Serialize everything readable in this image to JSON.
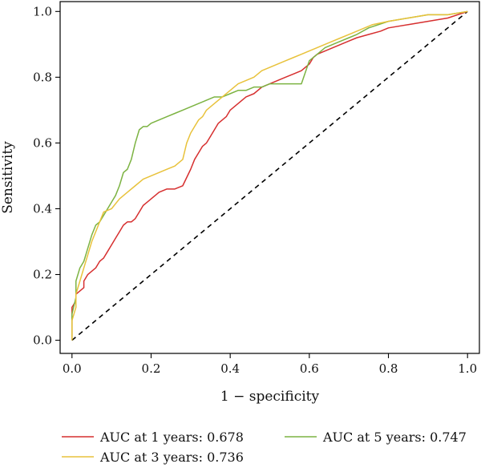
{
  "chart_data": {
    "type": "line",
    "title": "",
    "xlabel": "1 − specificity",
    "ylabel": "Sensitivity",
    "xlim": [
      -0.03,
      1.03
    ],
    "ylim": [
      -0.04,
      1.03
    ],
    "x_ticks": [
      "0.0",
      "0.2",
      "0.4",
      "0.6",
      "0.8",
      "1.0"
    ],
    "y_ticks": [
      "0.0",
      "0.2",
      "0.4",
      "0.6",
      "0.8",
      "1.0"
    ],
    "grid": false,
    "legend_position": "bottom",
    "diagonal": {
      "style": "dashed",
      "color": "#000000",
      "x": [
        0,
        1
      ],
      "y": [
        0,
        1
      ]
    },
    "series": [
      {
        "name": "AUC at 1 years: 0.678",
        "color": "#d62f2f",
        "x": [
          0.0,
          0.0,
          0.01,
          0.01,
          0.02,
          0.03,
          0.03,
          0.04,
          0.05,
          0.06,
          0.07,
          0.08,
          0.09,
          0.1,
          0.11,
          0.12,
          0.13,
          0.14,
          0.15,
          0.16,
          0.17,
          0.18,
          0.19,
          0.2,
          0.21,
          0.22,
          0.24,
          0.26,
          0.28,
          0.3,
          0.31,
          0.32,
          0.33,
          0.34,
          0.35,
          0.36,
          0.37,
          0.38,
          0.39,
          0.4,
          0.42,
          0.44,
          0.46,
          0.48,
          0.5,
          0.52,
          0.54,
          0.56,
          0.58,
          0.6,
          0.61,
          0.62,
          0.64,
          0.66,
          0.68,
          0.7,
          0.72,
          0.75,
          0.78,
          0.8,
          0.85,
          0.9,
          0.95,
          1.0
        ],
        "y": [
          0.0,
          0.1,
          0.12,
          0.14,
          0.15,
          0.16,
          0.18,
          0.2,
          0.21,
          0.22,
          0.24,
          0.25,
          0.27,
          0.29,
          0.31,
          0.33,
          0.35,
          0.36,
          0.36,
          0.37,
          0.39,
          0.41,
          0.42,
          0.43,
          0.44,
          0.45,
          0.46,
          0.46,
          0.47,
          0.52,
          0.55,
          0.57,
          0.59,
          0.6,
          0.62,
          0.64,
          0.66,
          0.67,
          0.68,
          0.7,
          0.72,
          0.74,
          0.75,
          0.77,
          0.78,
          0.79,
          0.8,
          0.81,
          0.82,
          0.84,
          0.86,
          0.87,
          0.88,
          0.89,
          0.9,
          0.91,
          0.92,
          0.93,
          0.94,
          0.95,
          0.96,
          0.97,
          0.98,
          1.0
        ]
      },
      {
        "name": "AUC at 3 years: 0.736",
        "color": "#e8c23b",
        "x": [
          0.0,
          0.0,
          0.01,
          0.01,
          0.02,
          0.03,
          0.04,
          0.05,
          0.06,
          0.07,
          0.08,
          0.1,
          0.12,
          0.14,
          0.16,
          0.18,
          0.2,
          0.22,
          0.24,
          0.26,
          0.28,
          0.29,
          0.3,
          0.31,
          0.32,
          0.33,
          0.34,
          0.36,
          0.38,
          0.4,
          0.42,
          0.44,
          0.46,
          0.48,
          0.5,
          0.52,
          0.54,
          0.56,
          0.58,
          0.6,
          0.62,
          0.64,
          0.66,
          0.68,
          0.7,
          0.72,
          0.74,
          0.76,
          0.8,
          0.85,
          0.9,
          0.95,
          1.0
        ],
        "y": [
          0.0,
          0.06,
          0.1,
          0.14,
          0.18,
          0.22,
          0.26,
          0.3,
          0.33,
          0.36,
          0.39,
          0.4,
          0.43,
          0.45,
          0.47,
          0.49,
          0.5,
          0.51,
          0.52,
          0.53,
          0.55,
          0.6,
          0.63,
          0.65,
          0.67,
          0.68,
          0.7,
          0.72,
          0.74,
          0.76,
          0.78,
          0.79,
          0.8,
          0.82,
          0.83,
          0.84,
          0.85,
          0.86,
          0.87,
          0.88,
          0.89,
          0.9,
          0.91,
          0.92,
          0.93,
          0.94,
          0.95,
          0.96,
          0.97,
          0.98,
          0.99,
          0.99,
          1.0
        ]
      },
      {
        "name": "AUC at 5 years: 0.747",
        "color": "#7cb342",
        "x": [
          0.0,
          0.0,
          0.01,
          0.01,
          0.02,
          0.03,
          0.04,
          0.05,
          0.06,
          0.07,
          0.08,
          0.09,
          0.1,
          0.11,
          0.12,
          0.13,
          0.14,
          0.15,
          0.16,
          0.17,
          0.18,
          0.19,
          0.2,
          0.22,
          0.24,
          0.26,
          0.28,
          0.3,
          0.32,
          0.34,
          0.36,
          0.38,
          0.4,
          0.42,
          0.44,
          0.46,
          0.48,
          0.5,
          0.52,
          0.54,
          0.56,
          0.58,
          0.6,
          0.62,
          0.64,
          0.66,
          0.68,
          0.7,
          0.72,
          0.75,
          0.8,
          0.85,
          0.9,
          0.95,
          1.0
        ],
        "y": [
          0.0,
          0.08,
          0.13,
          0.18,
          0.22,
          0.24,
          0.28,
          0.32,
          0.35,
          0.36,
          0.38,
          0.4,
          0.42,
          0.44,
          0.47,
          0.51,
          0.52,
          0.55,
          0.6,
          0.64,
          0.65,
          0.65,
          0.66,
          0.67,
          0.68,
          0.69,
          0.7,
          0.71,
          0.72,
          0.73,
          0.74,
          0.74,
          0.75,
          0.76,
          0.76,
          0.77,
          0.77,
          0.78,
          0.78,
          0.78,
          0.78,
          0.78,
          0.85,
          0.87,
          0.89,
          0.9,
          0.91,
          0.92,
          0.93,
          0.95,
          0.97,
          0.98,
          0.99,
          0.99,
          1.0
        ]
      }
    ]
  }
}
